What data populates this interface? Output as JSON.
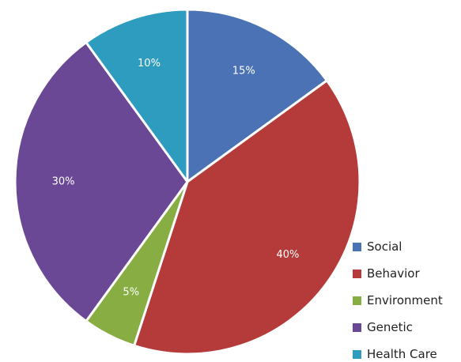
{
  "chart_data": {
    "type": "pie",
    "title": "",
    "categories": [
      "Social",
      "Behavior",
      "Environment",
      "Genetic",
      "Health Care"
    ],
    "values": [
      15,
      40,
      5,
      30,
      10
    ],
    "data_labels": [
      "15%",
      "40%",
      "5%",
      "30%",
      "10%"
    ],
    "colors": [
      "#4a72b4",
      "#b53a3a",
      "#88ad43",
      "#6b4896",
      "#2d9cbf"
    ],
    "start": "12 o'clock",
    "direction": "clockwise",
    "legend_position": "bottom-right"
  }
}
